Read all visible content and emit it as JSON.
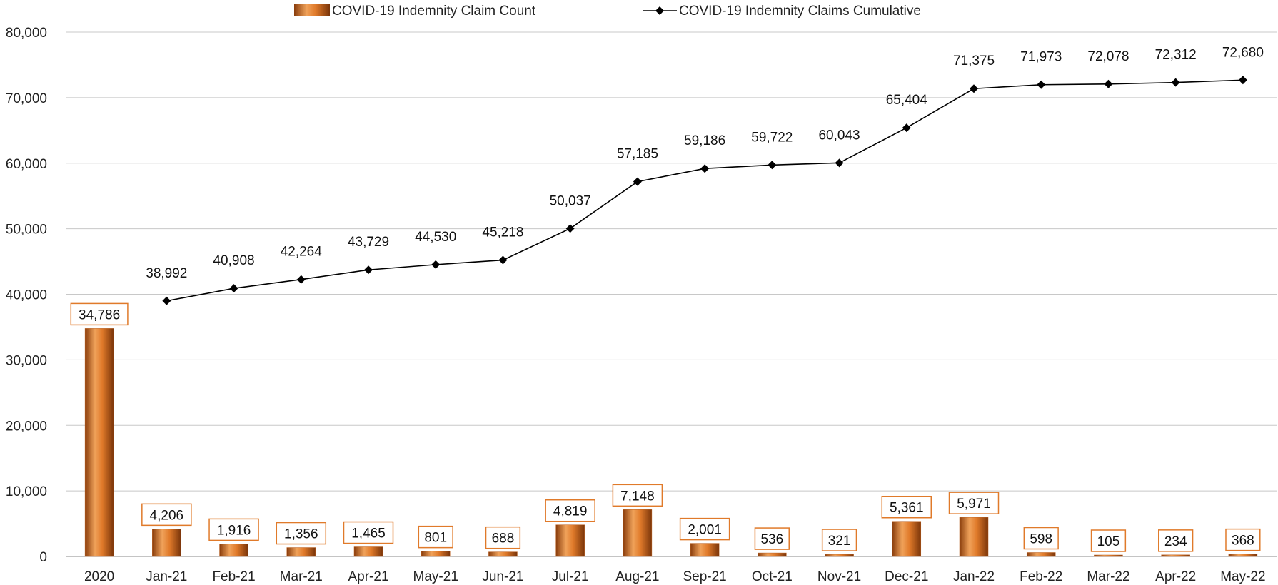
{
  "chart_data": {
    "type": "bar+line",
    "categories": [
      "2020",
      "Jan-21",
      "Feb-21",
      "Mar-21",
      "Apr-21",
      "May-21",
      "Jun-21",
      "Jul-21",
      "Aug-21",
      "Sep-21",
      "Oct-21",
      "Nov-21",
      "Dec-21",
      "Jan-22",
      "Feb-22",
      "Mar-22",
      "Apr-22",
      "May-22"
    ],
    "series": [
      {
        "name": "COVID-19 Indemnity Claim Count",
        "type": "bar",
        "color": "#e07a2a",
        "values": [
          34786,
          4206,
          1916,
          1356,
          1465,
          801,
          688,
          4819,
          7148,
          2001,
          536,
          321,
          5361,
          5971,
          598,
          105,
          234,
          368
        ],
        "labels": [
          "34,786",
          "4,206",
          "1,916",
          "1,356",
          "1,465",
          "801",
          "688",
          "4,819",
          "7,148",
          "2,001",
          "536",
          "321",
          "5,361",
          "5,971",
          "598",
          "105",
          "234",
          "368"
        ]
      },
      {
        "name": "COVID-19 Indemnity Claims Cumulative",
        "type": "line",
        "color": "#000000",
        "values": [
          null,
          38992,
          40908,
          42264,
          43729,
          44530,
          45218,
          50037,
          57185,
          59186,
          59722,
          60043,
          65404,
          71375,
          71973,
          72078,
          72312,
          72680
        ],
        "labels": [
          "",
          "38,992",
          "40,908",
          "42,264",
          "43,729",
          "44,530",
          "45,218",
          "50,037",
          "57,185",
          "59,186",
          "59,722",
          "60,043",
          "65,404",
          "71,375",
          "71,973",
          "72,078",
          "72,312",
          "72,680"
        ]
      }
    ],
    "ylim": [
      0,
      80000
    ],
    "yticks": [
      0,
      10000,
      20000,
      30000,
      40000,
      50000,
      60000,
      70000,
      80000
    ],
    "ytick_labels": [
      "0",
      "10,000",
      "20,000",
      "30,000",
      "40,000",
      "50,000",
      "60,000",
      "70,000",
      "80,000"
    ],
    "grid": true,
    "legend_position": "top",
    "title": "",
    "xlabel": "",
    "ylabel": ""
  }
}
